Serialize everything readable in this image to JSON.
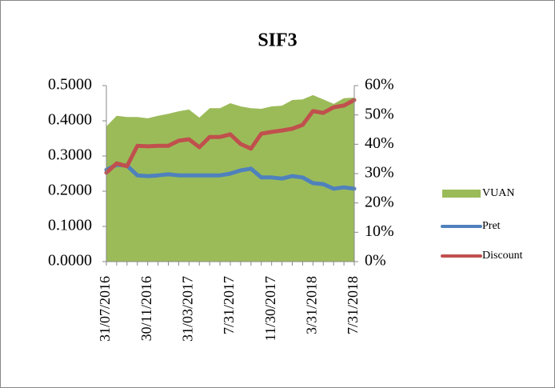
{
  "chart_data": {
    "type": "line",
    "title": "SIF3",
    "categories": [
      "31/07/2016",
      null,
      null,
      null,
      "30/11/2016",
      null,
      null,
      null,
      "31/03/2017",
      null,
      null,
      null,
      "7/31/2017",
      null,
      null,
      null,
      "11/30/2017",
      null,
      null,
      null,
      "3/31/2018",
      null,
      null,
      null,
      "7/31/2018"
    ],
    "series": [
      {
        "name": "VUAN",
        "color": "#9bbb59",
        "kind": "area",
        "values": [
          0.384,
          0.414,
          0.411,
          0.411,
          0.407,
          0.414,
          0.42,
          0.427,
          0.432,
          0.409,
          0.436,
          0.436,
          0.45,
          0.441,
          0.436,
          0.434,
          0.441,
          0.443,
          0.459,
          0.461,
          0.473,
          0.461,
          0.448,
          0.464,
          0.466
        ]
      },
      {
        "name": "Pret",
        "color": "#4f81bd",
        "kind": "line",
        "values": [
          0.261,
          0.275,
          0.273,
          0.245,
          0.243,
          0.245,
          0.248,
          0.245,
          0.245,
          0.245,
          0.245,
          0.245,
          0.25,
          0.259,
          0.264,
          0.239,
          0.239,
          0.236,
          0.243,
          0.239,
          0.223,
          0.22,
          0.207,
          0.211,
          0.207
        ]
      },
      {
        "name": "Discount",
        "color": "#c0504d",
        "kind": "line",
        "axis": "y2",
        "values": [
          30.3,
          33.5,
          32.5,
          39.5,
          39.3,
          39.5,
          39.5,
          41.2,
          41.7,
          39.0,
          42.5,
          42.5,
          43.4,
          40.1,
          38.5,
          43.6,
          44.2,
          44.7,
          45.3,
          46.6,
          51.3,
          50.7,
          52.6,
          53.2,
          55.1
        ]
      }
    ],
    "ylim": [
      0,
      0.5
    ],
    "yticks": [
      {
        "value": 0,
        "label": "0.0000"
      },
      {
        "value": 0.1,
        "label": "0.1000"
      },
      {
        "value": 0.2,
        "label": "0.2000"
      },
      {
        "value": 0.3,
        "label": "0.3000"
      },
      {
        "value": 0.4,
        "label": "0.4000"
      },
      {
        "value": 0.5,
        "label": "0.5000"
      }
    ],
    "y2lim": [
      0,
      60
    ],
    "y2ticks": [
      {
        "value": 0,
        "label": "0%"
      },
      {
        "value": 10,
        "label": "10%"
      },
      {
        "value": 20,
        "label": "20%"
      },
      {
        "value": 30,
        "label": "30%"
      },
      {
        "value": 40,
        "label": "40%"
      },
      {
        "value": 50,
        "label": "50%"
      },
      {
        "value": 60,
        "label": "60%"
      }
    ],
    "legend": "right",
    "grid": false
  }
}
